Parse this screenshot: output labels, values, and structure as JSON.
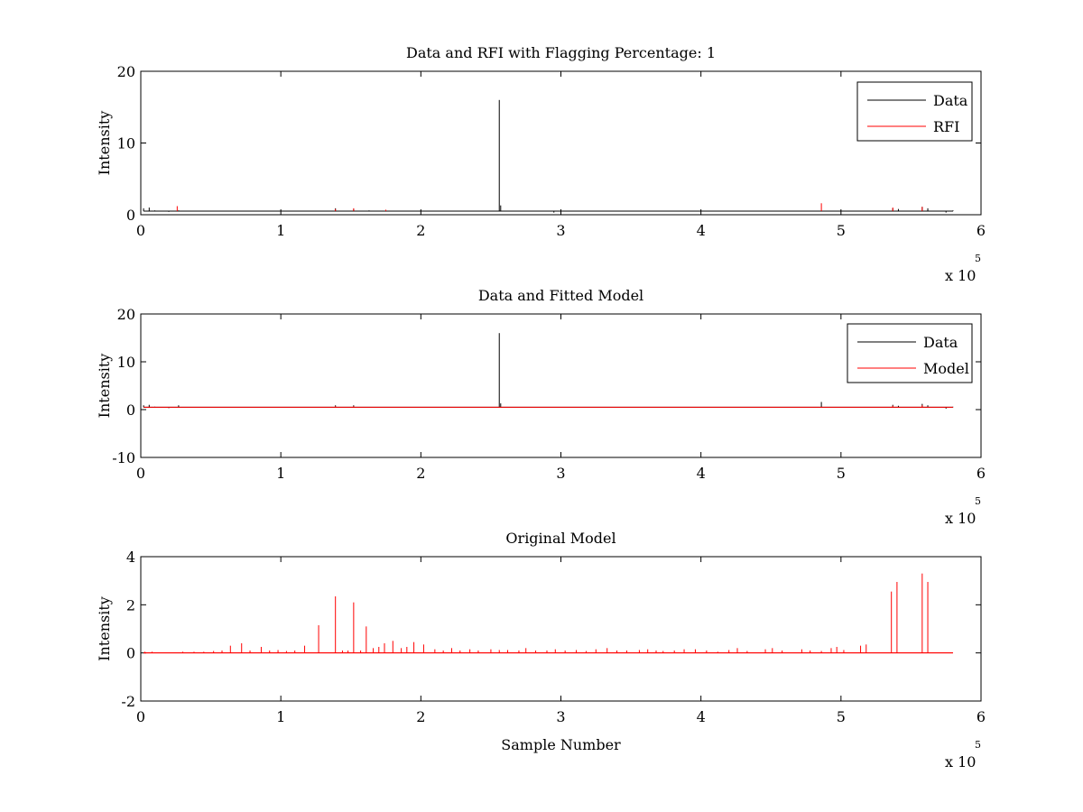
{
  "chart_data": [
    {
      "type": "line",
      "title": "Data and RFI with Flagging Percentage: 1",
      "xlabel": "",
      "ylabel": "Intensity",
      "xlim": [
        0,
        600000
      ],
      "ylim": [
        0,
        20
      ],
      "xticks": [
        0,
        1,
        2,
        3,
        4,
        5,
        6
      ],
      "yticks": [
        0,
        10,
        20
      ],
      "x_exponent_label": "x 10",
      "x_exponent_power": "5",
      "baseline": 0.5,
      "legend_position": "top-right",
      "series": [
        {
          "name": "Data",
          "color": "#000000",
          "points": [
            [
              0,
              1.1
            ],
            [
              2000,
              0.9
            ],
            [
              6000,
              1.0
            ],
            [
              10000,
              0.6
            ],
            [
              20000,
              0.4
            ],
            [
              27000,
              0.6
            ],
            [
              40000,
              0.5
            ],
            [
              139000,
              0.9
            ],
            [
              152000,
              0.8
            ],
            [
              157000,
              0.5
            ],
            [
              163000,
              0.6
            ],
            [
              256000,
              16.0
            ],
            [
              257000,
              1.3
            ],
            [
              295000,
              0.3
            ],
            [
              300000,
              0.5
            ],
            [
              486000,
              0.6
            ],
            [
              537000,
              0.9
            ],
            [
              541000,
              0.8
            ],
            [
              558000,
              1.1
            ],
            [
              562000,
              0.9
            ],
            [
              575000,
              0.3
            ],
            [
              580000,
              0.6
            ]
          ]
        },
        {
          "name": "RFI",
          "color": "#ff0000",
          "points": [
            [
              26000,
              1.2
            ],
            [
              139000,
              0.8
            ],
            [
              152000,
              0.9
            ],
            [
              175000,
              0.7
            ],
            [
              486000,
              1.6
            ],
            [
              537000,
              1.0
            ],
            [
              558000,
              1.1
            ]
          ]
        }
      ]
    },
    {
      "type": "line",
      "title": "Data and Fitted Model",
      "xlabel": "",
      "ylabel": "Intensity",
      "xlim": [
        0,
        600000
      ],
      "ylim": [
        -10,
        20
      ],
      "xticks": [
        0,
        1,
        2,
        3,
        4,
        5,
        6
      ],
      "yticks": [
        -10,
        0,
        10,
        20
      ],
      "x_exponent_label": "x 10",
      "x_exponent_power": "5",
      "baseline": 0.5,
      "legend_position": "top-right",
      "series": [
        {
          "name": "Data",
          "color": "#000000",
          "points": [
            [
              0,
              1.2
            ],
            [
              2000,
              0.9
            ],
            [
              6000,
              1.0
            ],
            [
              10000,
              0.6
            ],
            [
              20000,
              0.3
            ],
            [
              27000,
              0.9
            ],
            [
              139000,
              0.9
            ],
            [
              152000,
              0.9
            ],
            [
              256000,
              16.0
            ],
            [
              257000,
              1.3
            ],
            [
              486000,
              1.6
            ],
            [
              537000,
              1.0
            ],
            [
              541000,
              0.8
            ],
            [
              558000,
              1.2
            ],
            [
              562000,
              0.9
            ],
            [
              575000,
              0.2
            ],
            [
              580000,
              0.6
            ]
          ]
        },
        {
          "name": "Model",
          "color": "#ff0000",
          "points": [
            [
              139000,
              0.7
            ],
            [
              152000,
              0.7
            ],
            [
              537000,
              0.8
            ],
            [
              558000,
              0.9
            ]
          ]
        }
      ]
    },
    {
      "type": "line",
      "title": "Original Model",
      "xlabel": "Sample Number",
      "ylabel": "Intensity",
      "xlim": [
        0,
        600000
      ],
      "ylim": [
        -2,
        4
      ],
      "xticks": [
        0,
        1,
        2,
        3,
        4,
        5,
        6
      ],
      "yticks": [
        -2,
        0,
        2,
        4
      ],
      "x_exponent_label": "x 10",
      "x_exponent_power": "5",
      "baseline": 0,
      "series": [
        {
          "name": "",
          "color": "#ff0000",
          "points": [
            [
              3000,
              0.05
            ],
            [
              8000,
              0.05
            ],
            [
              30000,
              0.05
            ],
            [
              38000,
              0.05
            ],
            [
              45000,
              0.05
            ],
            [
              52000,
              0.08
            ],
            [
              58000,
              0.1
            ],
            [
              64000,
              0.3
            ],
            [
              72000,
              0.4
            ],
            [
              78000,
              0.1
            ],
            [
              86000,
              0.25
            ],
            [
              92000,
              0.1
            ],
            [
              98000,
              0.12
            ],
            [
              104000,
              0.08
            ],
            [
              110000,
              0.1
            ],
            [
              117000,
              0.3
            ],
            [
              127000,
              1.15
            ],
            [
              139000,
              2.35
            ],
            [
              144000,
              0.1
            ],
            [
              148000,
              0.1
            ],
            [
              152000,
              2.1
            ],
            [
              157000,
              0.1
            ],
            [
              161000,
              1.1
            ],
            [
              166000,
              0.2
            ],
            [
              170000,
              0.25
            ],
            [
              174000,
              0.4
            ],
            [
              180000,
              0.5
            ],
            [
              186000,
              0.2
            ],
            [
              190000,
              0.25
            ],
            [
              195000,
              0.45
            ],
            [
              202000,
              0.35
            ],
            [
              210000,
              0.15
            ],
            [
              216000,
              0.1
            ],
            [
              222000,
              0.2
            ],
            [
              228000,
              0.1
            ],
            [
              235000,
              0.15
            ],
            [
              241000,
              0.1
            ],
            [
              250000,
              0.15
            ],
            [
              256000,
              0.12
            ],
            [
              262000,
              0.12
            ],
            [
              270000,
              0.1
            ],
            [
              275000,
              0.2
            ],
            [
              282000,
              0.1
            ],
            [
              290000,
              0.1
            ],
            [
              296000,
              0.15
            ],
            [
              303000,
              0.1
            ],
            [
              311000,
              0.12
            ],
            [
              318000,
              0.08
            ],
            [
              325000,
              0.15
            ],
            [
              333000,
              0.2
            ],
            [
              340000,
              0.1
            ],
            [
              347000,
              0.1
            ],
            [
              356000,
              0.12
            ],
            [
              362000,
              0.15
            ],
            [
              368000,
              0.1
            ],
            [
              373000,
              0.08
            ],
            [
              381000,
              0.1
            ],
            [
              388000,
              0.15
            ],
            [
              396000,
              0.15
            ],
            [
              404000,
              0.1
            ],
            [
              412000,
              0.05
            ],
            [
              420000,
              0.12
            ],
            [
              426000,
              0.2
            ],
            [
              433000,
              0.08
            ],
            [
              446000,
              0.15
            ],
            [
              451000,
              0.2
            ],
            [
              458000,
              0.1
            ],
            [
              472000,
              0.15
            ],
            [
              478000,
              0.1
            ],
            [
              486000,
              0.08
            ],
            [
              493000,
              0.2
            ],
            [
              497000,
              0.25
            ],
            [
              502000,
              0.12
            ],
            [
              514000,
              0.3
            ],
            [
              518000,
              0.35
            ],
            [
              536000,
              2.55
            ],
            [
              540000,
              2.95
            ],
            [
              558000,
              3.3
            ],
            [
              562000,
              2.95
            ]
          ]
        }
      ]
    }
  ]
}
